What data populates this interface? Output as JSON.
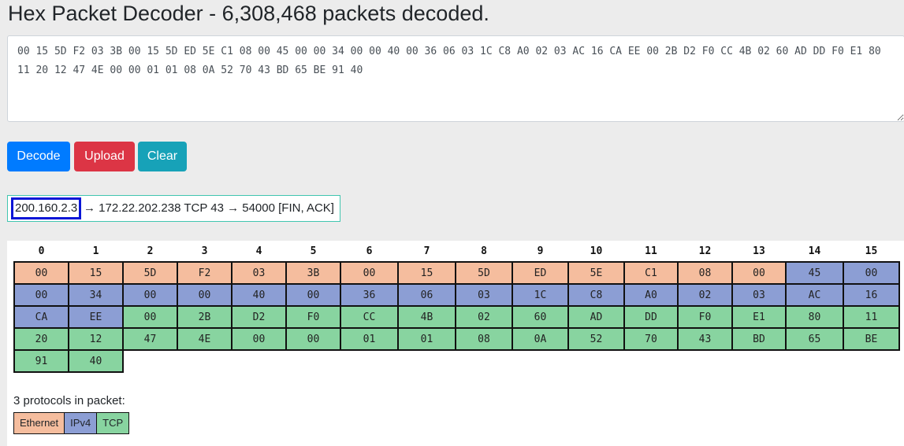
{
  "title": "Hex Packet Decoder - 6,308,468 packets decoded.",
  "hex_input": {
    "value": "00 15 5D F2 03 3B 00 15 5D ED 5E C1 08 00 45 00 00 34 00 00 40 00 36 06 03 1C C8 A0 02 03 AC 16 CA EE 00 2B D2 F0 CC 4B 02 60 AD DD F0 E1 80 11 20 12 47 4E 00 00 01 01 08 0A 52 70 43 BD 65 BE 91 40"
  },
  "buttons": {
    "decode": "Decode",
    "upload": "Upload",
    "clear": "Clear"
  },
  "summary": {
    "source_ip": "200.160.2.3",
    "rest": "→ 172.22.202.238 TCP 43 → 54000 [FIN, ACK]"
  },
  "byte_table": {
    "headers": [
      "0",
      "1",
      "2",
      "3",
      "4",
      "5",
      "6",
      "7",
      "8",
      "9",
      "10",
      "11",
      "12",
      "13",
      "14",
      "15"
    ],
    "rows": [
      [
        {
          "t": "00",
          "p": "eth"
        },
        {
          "t": "15",
          "p": "eth"
        },
        {
          "t": "5D",
          "p": "eth"
        },
        {
          "t": "F2",
          "p": "eth"
        },
        {
          "t": "03",
          "p": "eth"
        },
        {
          "t": "3B",
          "p": "eth"
        },
        {
          "t": "00",
          "p": "eth"
        },
        {
          "t": "15",
          "p": "eth"
        },
        {
          "t": "5D",
          "p": "eth"
        },
        {
          "t": "ED",
          "p": "eth"
        },
        {
          "t": "5E",
          "p": "eth"
        },
        {
          "t": "C1",
          "p": "eth"
        },
        {
          "t": "08",
          "p": "eth"
        },
        {
          "t": "00",
          "p": "eth"
        },
        {
          "t": "45",
          "p": "ipv4"
        },
        {
          "t": "00",
          "p": "ipv4"
        }
      ],
      [
        {
          "t": "00",
          "p": "ipv4"
        },
        {
          "t": "34",
          "p": "ipv4"
        },
        {
          "t": "00",
          "p": "ipv4"
        },
        {
          "t": "00",
          "p": "ipv4"
        },
        {
          "t": "40",
          "p": "ipv4"
        },
        {
          "t": "00",
          "p": "ipv4"
        },
        {
          "t": "36",
          "p": "ipv4"
        },
        {
          "t": "06",
          "p": "ipv4"
        },
        {
          "t": "03",
          "p": "ipv4"
        },
        {
          "t": "1C",
          "p": "ipv4"
        },
        {
          "t": "C8",
          "p": "ipv4"
        },
        {
          "t": "A0",
          "p": "ipv4"
        },
        {
          "t": "02",
          "p": "ipv4"
        },
        {
          "t": "03",
          "p": "ipv4"
        },
        {
          "t": "AC",
          "p": "ipv4"
        },
        {
          "t": "16",
          "p": "ipv4"
        }
      ],
      [
        {
          "t": "CA",
          "p": "ipv4"
        },
        {
          "t": "EE",
          "p": "ipv4"
        },
        {
          "t": "00",
          "p": "tcp"
        },
        {
          "t": "2B",
          "p": "tcp"
        },
        {
          "t": "D2",
          "p": "tcp"
        },
        {
          "t": "F0",
          "p": "tcp"
        },
        {
          "t": "CC",
          "p": "tcp"
        },
        {
          "t": "4B",
          "p": "tcp"
        },
        {
          "t": "02",
          "p": "tcp"
        },
        {
          "t": "60",
          "p": "tcp"
        },
        {
          "t": "AD",
          "p": "tcp"
        },
        {
          "t": "DD",
          "p": "tcp"
        },
        {
          "t": "F0",
          "p": "tcp"
        },
        {
          "t": "E1",
          "p": "tcp"
        },
        {
          "t": "80",
          "p": "tcp"
        },
        {
          "t": "11",
          "p": "tcp"
        }
      ],
      [
        {
          "t": "20",
          "p": "tcp"
        },
        {
          "t": "12",
          "p": "tcp"
        },
        {
          "t": "47",
          "p": "tcp"
        },
        {
          "t": "4E",
          "p": "tcp"
        },
        {
          "t": "00",
          "p": "tcp"
        },
        {
          "t": "00",
          "p": "tcp"
        },
        {
          "t": "01",
          "p": "tcp"
        },
        {
          "t": "01",
          "p": "tcp"
        },
        {
          "t": "08",
          "p": "tcp"
        },
        {
          "t": "0A",
          "p": "tcp"
        },
        {
          "t": "52",
          "p": "tcp"
        },
        {
          "t": "70",
          "p": "tcp"
        },
        {
          "t": "43",
          "p": "tcp"
        },
        {
          "t": "BD",
          "p": "tcp"
        },
        {
          "t": "65",
          "p": "tcp"
        },
        {
          "t": "BE",
          "p": "tcp"
        }
      ],
      [
        {
          "t": "91",
          "p": "tcp"
        },
        {
          "t": "40",
          "p": "tcp"
        }
      ]
    ]
  },
  "protocols": {
    "count_text": "3 protocols in packet:",
    "items": [
      {
        "label": "Ethernet",
        "p": "eth"
      },
      {
        "label": "IPv4",
        "p": "ipv4"
      },
      {
        "label": "TCP",
        "p": "tcp"
      }
    ]
  },
  "colors": {
    "ethernet": "#f5bd9e",
    "ipv4": "#8c9ed4",
    "tcp": "#88d4a0",
    "decode_button": "#007bff",
    "upload_button": "#dc3545",
    "clear_button": "#17a2b8",
    "selection_outline": "#0a16d6"
  }
}
